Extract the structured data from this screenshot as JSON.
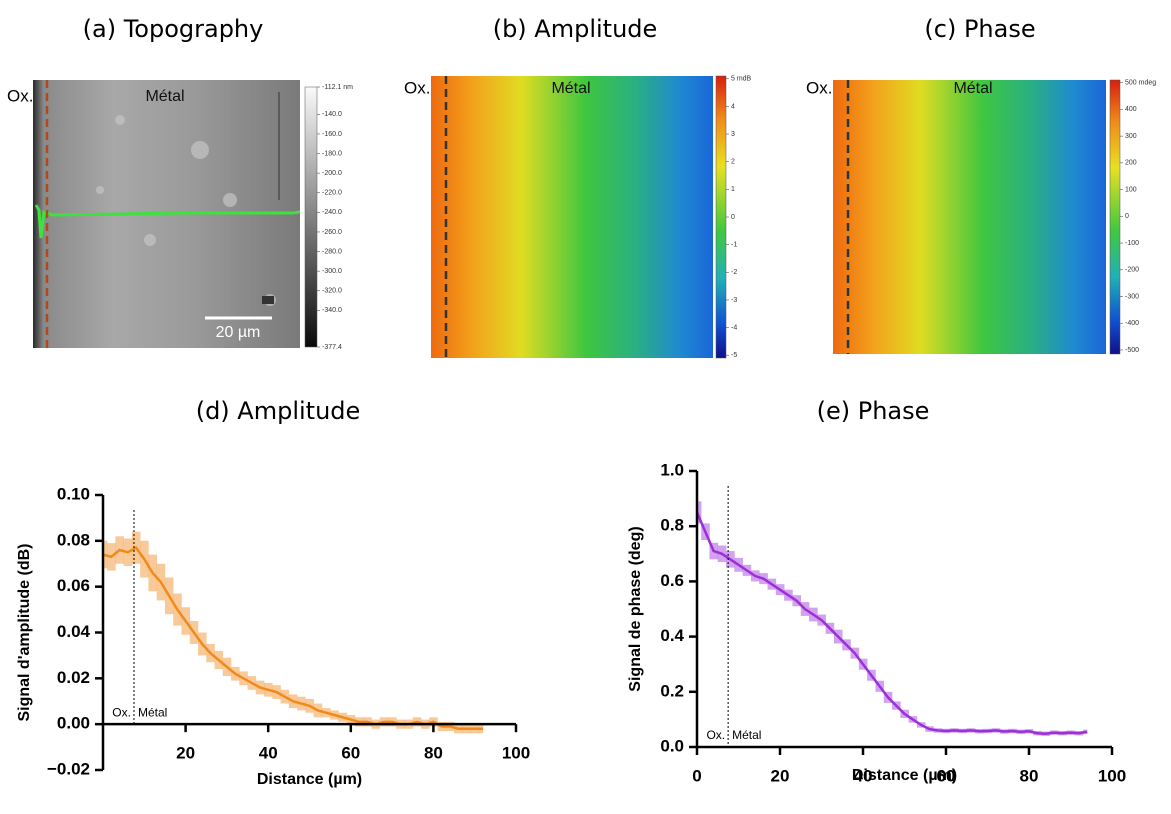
{
  "chart_data": [
    {
      "type": "image",
      "title": "(a) Topography",
      "colormap": "gray",
      "left_label": "Ox.",
      "center_label": "Métal",
      "scale_bar": "20 µm",
      "colorbar": {
        "clim": [
          -377.4,
          -112.1
        ],
        "ticks": [
          {
            "value": -112.1,
            "label": "-112.1 nm"
          },
          {
            "value": -140,
            "label": "-140.0"
          },
          {
            "value": -160,
            "label": "-160.0"
          },
          {
            "value": -180,
            "label": "-180.0"
          },
          {
            "value": -200,
            "label": "-200.0"
          },
          {
            "value": -220,
            "label": "-220.0"
          },
          {
            "value": -240,
            "label": "-240.0"
          },
          {
            "value": -260,
            "label": "-260.0"
          },
          {
            "value": -280,
            "label": "-280.0"
          },
          {
            "value": -300,
            "label": "-300.0"
          },
          {
            "value": -320,
            "label": "-320.0"
          },
          {
            "value": -340,
            "label": "-340.0"
          },
          {
            "value": -377.4,
            "label": "-377.4"
          }
        ]
      }
    },
    {
      "type": "image",
      "title": "(b) Amplitude",
      "colormap": "jet",
      "left_label": "Ox.",
      "center_label": "Métal",
      "colorbar": {
        "clim": [
          -5.1,
          5.1
        ],
        "ticks": [
          {
            "value": 5,
            "label": "5 mdB"
          },
          4,
          3,
          2,
          1,
          0,
          -1,
          -2,
          -3,
          -4,
          -5
        ]
      }
    },
    {
      "type": "image",
      "title": "(c) Phase",
      "colormap": "jet",
      "left_label": "Ox.",
      "center_label": "Métal",
      "colorbar": {
        "clim": [
          -515,
          510
        ],
        "ticks": [
          {
            "value": 500,
            "label": "500 mdeg"
          },
          400,
          300,
          200,
          100,
          0,
          -100,
          -200,
          -300,
          -400,
          -500
        ]
      }
    },
    {
      "type": "line",
      "title": "(d) Amplitude",
      "xlabel": "Distance (µm)",
      "ylabel": "Signal d'amplitude (dB)",
      "color": "#f08a1c",
      "xlim": [
        0,
        100
      ],
      "ylim": [
        -0.02,
        0.1
      ],
      "xticks": [
        20,
        40,
        60,
        80,
        100
      ],
      "yticks": [
        {
          "value": -0.02,
          "label": "−0.02"
        },
        {
          "value": 0,
          "label": "0.00"
        },
        {
          "value": 0.02,
          "label": "0.02"
        },
        {
          "value": 0.04,
          "label": "0.04"
        },
        {
          "value": 0.06,
          "label": "0.06"
        },
        {
          "value": 0.08,
          "label": "0.08"
        },
        {
          "value": 0.1,
          "label": "0.10"
        }
      ],
      "divider_x": 7.5,
      "left_label": "Ox.",
      "right_label": "Métal",
      "x": [
        0,
        2,
        4,
        6,
        8,
        10,
        12,
        14,
        16,
        18,
        20,
        22,
        24,
        26,
        28,
        30,
        32,
        34,
        36,
        38,
        40,
        42,
        44,
        46,
        48,
        50,
        52,
        54,
        56,
        58,
        60,
        62,
        64,
        66,
        68,
        70,
        72,
        74,
        76,
        78,
        80,
        82,
        84,
        86,
        88,
        90,
        92
      ],
      "values": [
        0.074,
        0.073,
        0.076,
        0.075,
        0.077,
        0.072,
        0.066,
        0.062,
        0.056,
        0.05,
        0.045,
        0.04,
        0.035,
        0.031,
        0.028,
        0.025,
        0.022,
        0.02,
        0.018,
        0.016,
        0.015,
        0.014,
        0.012,
        0.01,
        0.009,
        0.008,
        0.006,
        0.005,
        0.004,
        0.003,
        0.002,
        0.001,
        0.001,
        0,
        0.001,
        0.001,
        0,
        0,
        0.001,
        0,
        0.001,
        -0.001,
        -0.001,
        -0.002,
        -0.002,
        -0.002,
        -0.002
      ],
      "error": [
        0.006,
        0.006,
        0.006,
        0.006,
        0.007,
        0.008,
        0.008,
        0.008,
        0.008,
        0.007,
        0.006,
        0.005,
        0.005,
        0.004,
        0.004,
        0.004,
        0.003,
        0.003,
        0.003,
        0.003,
        0.003,
        0.003,
        0.003,
        0.003,
        0.003,
        0.003,
        0.003,
        0.002,
        0.002,
        0.002,
        0.002,
        0.002,
        0.002,
        0.002,
        0.002,
        0.002,
        0.002,
        0.002,
        0.002,
        0.002,
        0.002,
        0.002,
        0.002,
        0.002,
        0.002,
        0.002,
        0.002
      ]
    },
    {
      "type": "line",
      "title": "(e) Phase",
      "xlabel": "Distance (µm)",
      "ylabel": "Signal de phase (deg)",
      "color": "#9b30d9",
      "xlim": [
        0,
        100
      ],
      "ylim": [
        0,
        1
      ],
      "xticks": [
        0,
        20,
        40,
        60,
        80,
        100
      ],
      "yticks": [
        {
          "value": 0,
          "label": "0.0"
        },
        0.2,
        0.4,
        0.6,
        0.8,
        {
          "value": 1,
          "label": "1.0"
        }
      ],
      "divider_x": 7.5,
      "left_label": "Ox.",
      "right_label": "Métal",
      "x": [
        0,
        2,
        4,
        6,
        8,
        10,
        12,
        14,
        16,
        18,
        20,
        22,
        24,
        26,
        28,
        30,
        32,
        34,
        36,
        38,
        40,
        42,
        44,
        46,
        48,
        50,
        52,
        54,
        56,
        58,
        60,
        62,
        64,
        66,
        68,
        70,
        72,
        74,
        76,
        78,
        80,
        82,
        84,
        86,
        88,
        90,
        92,
        94
      ],
      "values": [
        0.85,
        0.78,
        0.71,
        0.7,
        0.68,
        0.66,
        0.64,
        0.62,
        0.61,
        0.59,
        0.57,
        0.55,
        0.53,
        0.5,
        0.48,
        0.46,
        0.43,
        0.4,
        0.37,
        0.34,
        0.3,
        0.26,
        0.22,
        0.18,
        0.15,
        0.12,
        0.1,
        0.08,
        0.065,
        0.06,
        0.058,
        0.06,
        0.058,
        0.06,
        0.057,
        0.058,
        0.06,
        0.056,
        0.058,
        0.055,
        0.057,
        0.05,
        0.048,
        0.052,
        0.05,
        0.052,
        0.05,
        0.055
      ],
      "error": [
        0.04,
        0.03,
        0.03,
        0.03,
        0.03,
        0.025,
        0.02,
        0.02,
        0.02,
        0.02,
        0.02,
        0.02,
        0.02,
        0.025,
        0.025,
        0.02,
        0.02,
        0.025,
        0.02,
        0.02,
        0.02,
        0.02,
        0.02,
        0.02,
        0.015,
        0.015,
        0.012,
        0.01,
        0.01,
        0.008,
        0.008,
        0.008,
        0.008,
        0.008,
        0.008,
        0.008,
        0.008,
        0.008,
        0.008,
        0.008,
        0.008,
        0.008,
        0.008,
        0.008,
        0.008,
        0.008,
        0.008,
        0.008
      ]
    }
  ]
}
